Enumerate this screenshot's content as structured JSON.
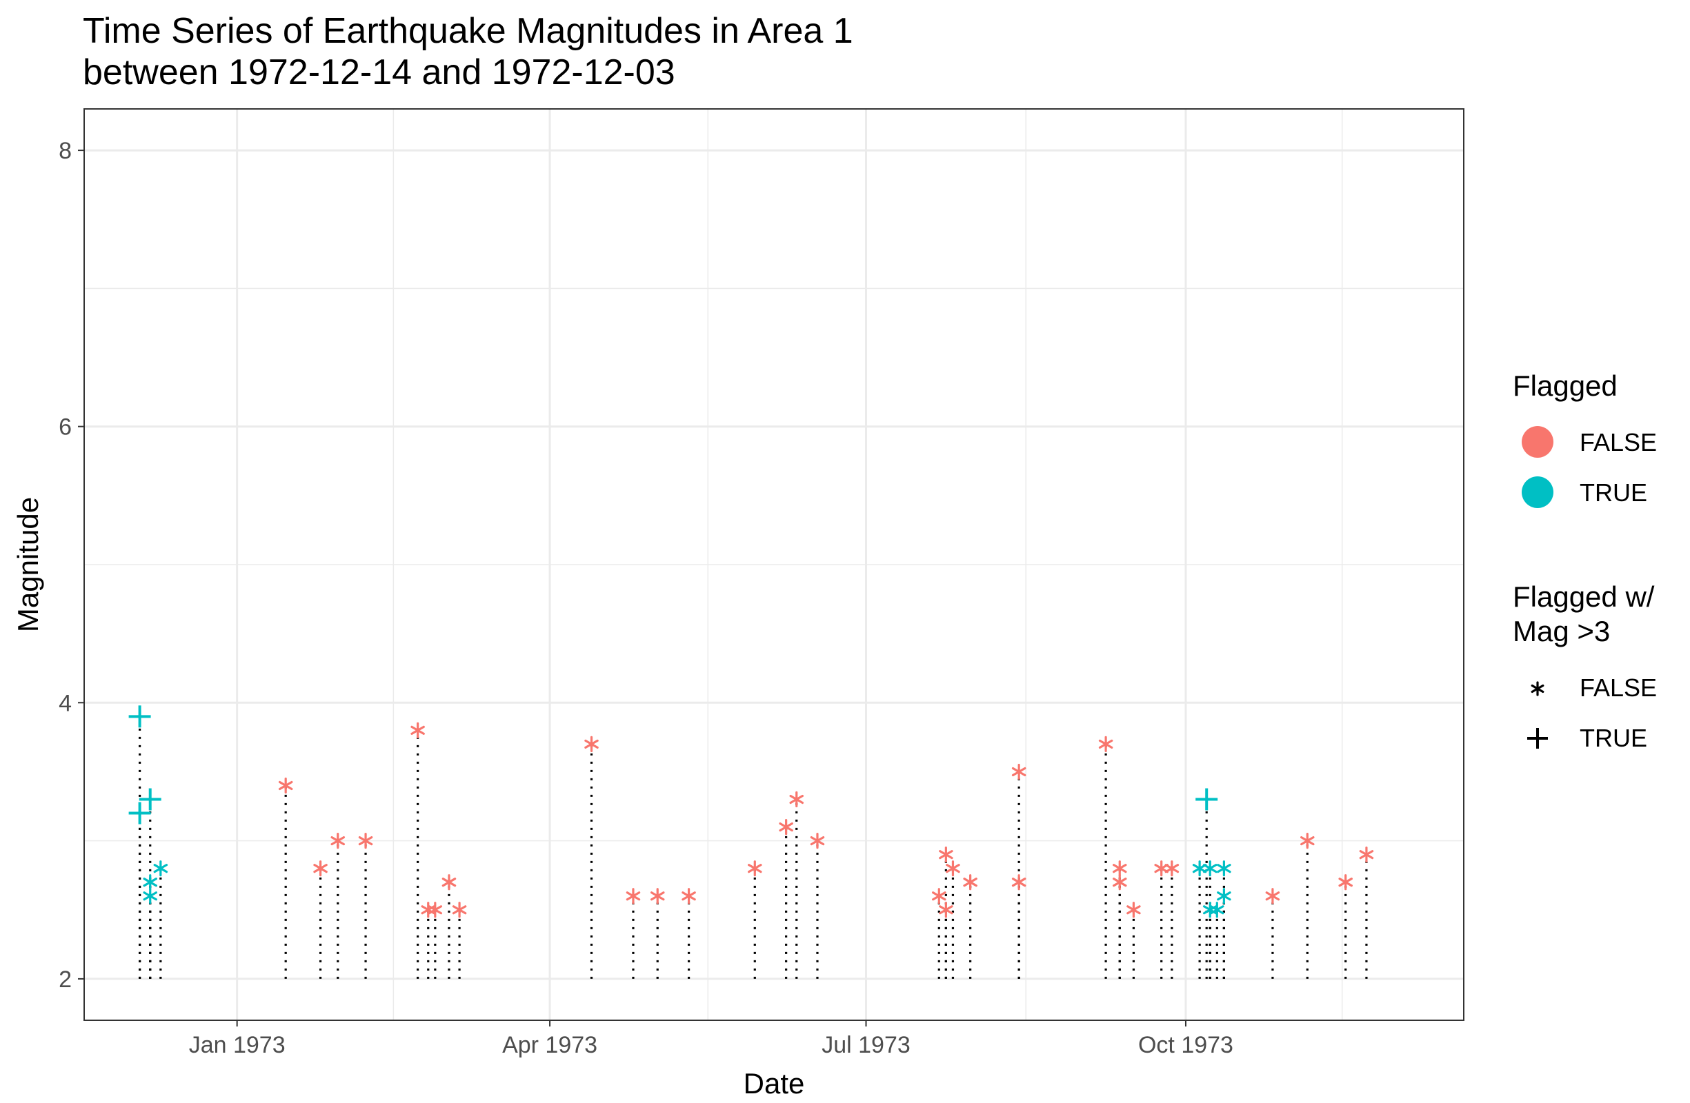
{
  "chart_data": {
    "type": "scatter",
    "title": "Time Series of Earthquake Magnitudes in Area 1",
    "subtitle": "between 1972-12-14 and 1972-12-03",
    "xlabel": "Date",
    "ylabel": "Magnitude",
    "xlim": [
      "1972-11-18",
      "1973-12-20"
    ],
    "ylim": [
      1.7,
      8.3
    ],
    "x_ticks": [
      {
        "date": "1973-01-01",
        "label": "Jan 1973"
      },
      {
        "date": "1973-04-01",
        "label": "Apr 1973"
      },
      {
        "date": "1973-07-01",
        "label": "Jul 1973"
      },
      {
        "date": "1973-10-01",
        "label": "Oct 1973"
      }
    ],
    "y_ticks": [
      2,
      4,
      6,
      8
    ],
    "baseline": 2,
    "grid": true,
    "legend_position": "right",
    "colors": {
      "FALSE": "#F8766D",
      "TRUE": "#00BFC4",
      "segment": "#000000",
      "grid": "#ebebeb"
    },
    "legends": {
      "color": {
        "title": "Flagged",
        "entries": [
          "FALSE",
          "TRUE"
        ]
      },
      "shape": {
        "title_line1": "Flagged w/",
        "title_line2": "Mag >3",
        "entries": [
          "FALSE",
          "TRUE"
        ],
        "symbols": [
          "*",
          "+"
        ]
      }
    },
    "points": [
      {
        "date": "1972-12-04",
        "mag": 3.9,
        "flag": true,
        "big": true
      },
      {
        "date": "1972-12-04",
        "mag": 3.2,
        "flag": true,
        "big": true
      },
      {
        "date": "1972-12-07",
        "mag": 3.3,
        "flag": true,
        "big": true
      },
      {
        "date": "1972-12-07",
        "mag": 2.7,
        "flag": true,
        "big": false
      },
      {
        "date": "1972-12-07",
        "mag": 2.6,
        "flag": true,
        "big": false
      },
      {
        "date": "1972-12-10",
        "mag": 2.8,
        "flag": true,
        "big": false
      },
      {
        "date": "1973-01-15",
        "mag": 3.4,
        "flag": false,
        "big": false
      },
      {
        "date": "1973-01-25",
        "mag": 2.8,
        "flag": false,
        "big": false
      },
      {
        "date": "1973-01-30",
        "mag": 3.0,
        "flag": false,
        "big": false
      },
      {
        "date": "1973-02-07",
        "mag": 3.0,
        "flag": false,
        "big": false
      },
      {
        "date": "1973-02-22",
        "mag": 3.8,
        "flag": false,
        "big": false
      },
      {
        "date": "1973-02-25",
        "mag": 2.5,
        "flag": false,
        "big": false
      },
      {
        "date": "1973-02-27",
        "mag": 2.5,
        "flag": false,
        "big": false
      },
      {
        "date": "1973-03-03",
        "mag": 2.7,
        "flag": false,
        "big": false
      },
      {
        "date": "1973-03-06",
        "mag": 2.5,
        "flag": false,
        "big": false
      },
      {
        "date": "1973-04-13",
        "mag": 3.7,
        "flag": false,
        "big": false
      },
      {
        "date": "1973-04-25",
        "mag": 2.6,
        "flag": false,
        "big": false
      },
      {
        "date": "1973-05-02",
        "mag": 2.6,
        "flag": false,
        "big": false
      },
      {
        "date": "1973-05-11",
        "mag": 2.6,
        "flag": false,
        "big": false
      },
      {
        "date": "1973-05-30",
        "mag": 2.8,
        "flag": false,
        "big": false
      },
      {
        "date": "1973-06-08",
        "mag": 3.1,
        "flag": false,
        "big": false
      },
      {
        "date": "1973-06-11",
        "mag": 3.3,
        "flag": false,
        "big": false
      },
      {
        "date": "1973-06-17",
        "mag": 3.0,
        "flag": false,
        "big": false
      },
      {
        "date": "1973-07-22",
        "mag": 2.6,
        "flag": false,
        "big": false
      },
      {
        "date": "1973-07-24",
        "mag": 2.9,
        "flag": false,
        "big": false
      },
      {
        "date": "1973-07-24",
        "mag": 2.5,
        "flag": false,
        "big": false
      },
      {
        "date": "1973-07-26",
        "mag": 2.8,
        "flag": false,
        "big": false
      },
      {
        "date": "1973-07-31",
        "mag": 2.7,
        "flag": false,
        "big": false
      },
      {
        "date": "1973-08-14",
        "mag": 3.5,
        "flag": false,
        "big": false
      },
      {
        "date": "1973-08-14",
        "mag": 2.7,
        "flag": false,
        "big": false
      },
      {
        "date": "1973-09-08",
        "mag": 3.7,
        "flag": false,
        "big": false
      },
      {
        "date": "1973-09-12",
        "mag": 2.8,
        "flag": false,
        "big": false
      },
      {
        "date": "1973-09-12",
        "mag": 2.7,
        "flag": false,
        "big": false
      },
      {
        "date": "1973-09-16",
        "mag": 2.5,
        "flag": false,
        "big": false
      },
      {
        "date": "1973-09-24",
        "mag": 2.8,
        "flag": false,
        "big": false
      },
      {
        "date": "1973-09-27",
        "mag": 2.8,
        "flag": false,
        "big": false
      },
      {
        "date": "1973-10-05",
        "mag": 2.8,
        "flag": true,
        "big": false
      },
      {
        "date": "1973-10-07",
        "mag": 3.3,
        "flag": true,
        "big": true
      },
      {
        "date": "1973-10-08",
        "mag": 2.8,
        "flag": true,
        "big": false
      },
      {
        "date": "1973-10-08",
        "mag": 2.5,
        "flag": true,
        "big": false
      },
      {
        "date": "1973-10-10",
        "mag": 2.5,
        "flag": true,
        "big": false
      },
      {
        "date": "1973-10-12",
        "mag": 2.8,
        "flag": true,
        "big": false
      },
      {
        "date": "1973-10-12",
        "mag": 2.6,
        "flag": true,
        "big": false
      },
      {
        "date": "1973-10-26",
        "mag": 2.6,
        "flag": false,
        "big": false
      },
      {
        "date": "1973-11-05",
        "mag": 3.0,
        "flag": false,
        "big": false
      },
      {
        "date": "1973-11-16",
        "mag": 2.7,
        "flag": false,
        "big": false
      },
      {
        "date": "1973-11-22",
        "mag": 2.9,
        "flag": false,
        "big": false
      }
    ]
  }
}
